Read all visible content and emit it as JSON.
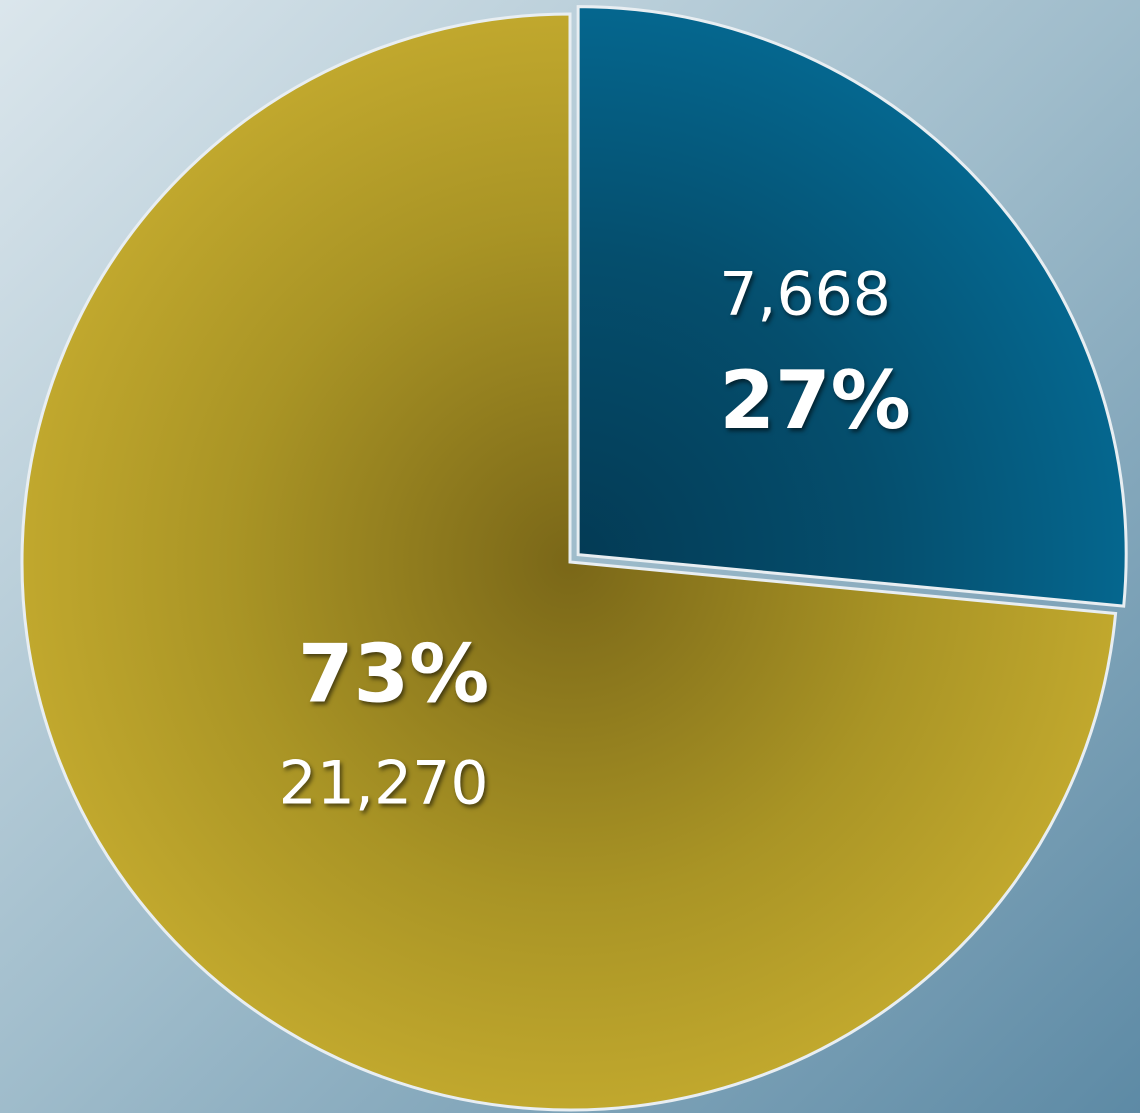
{
  "chart_data": {
    "type": "pie",
    "values": [
      7668,
      21270
    ],
    "value_labels": [
      "7,668",
      "21,270"
    ],
    "percentages": [
      27,
      73
    ],
    "percentage_labels": [
      "27%",
      "73%"
    ],
    "colors": [
      "#05678f",
      "#c2a92e"
    ],
    "start_angle": -90,
    "explode": [
      1,
      0
    ]
  }
}
